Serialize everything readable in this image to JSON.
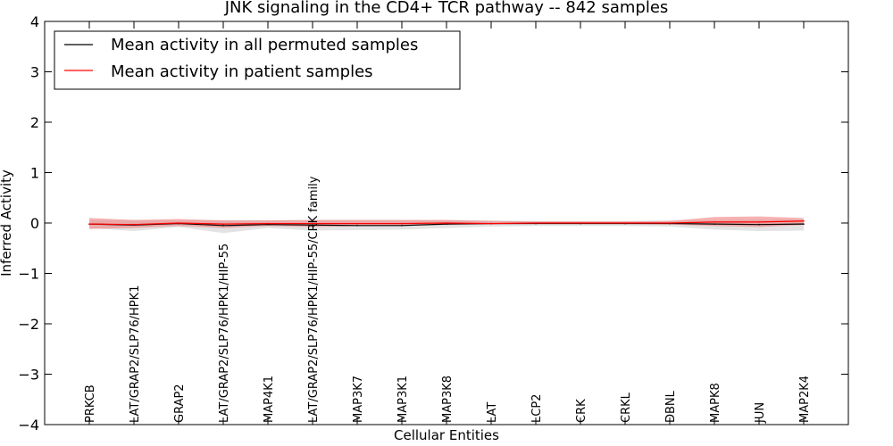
{
  "chart_data": {
    "type": "line",
    "title": "JNK signaling in the CD4+ TCR pathway -- 842 samples",
    "xlabel": "Cellular Entities",
    "ylabel": "Inferred Activity",
    "ylim": [
      -4,
      4
    ],
    "yticks": [
      -4,
      -3,
      -2,
      -1,
      0,
      1,
      2,
      3,
      4
    ],
    "ytick_labels": [
      "−4",
      "−3",
      "−2",
      "−1",
      "0",
      "1",
      "2",
      "3",
      "4"
    ],
    "grid": false,
    "legend_position": "top-left",
    "categories": [
      "PRKCB",
      "LAT/GRAP2/SLP76/HPK1",
      "GRAP2",
      "LAT/GRAP2/SLP76/HPK1/HIP-55",
      "MAP4K1",
      "LAT/GRAP2/SLP76/HPK1/HIP-55/CRK family",
      "MAP3K7",
      "MAP3K1",
      "MAP3K8",
      "LAT",
      "LCP2",
      "CRK",
      "CRKL",
      "DBNL",
      "MAPK8",
      "JUN",
      "MAP2K4"
    ],
    "series": [
      {
        "name": "Mean activity in all permuted samples",
        "color": "#000000",
        "band_color": "#c8c8c8",
        "values": [
          -0.02,
          -0.04,
          -0.01,
          -0.05,
          -0.03,
          -0.04,
          -0.05,
          -0.05,
          -0.02,
          -0.01,
          -0.01,
          -0.01,
          -0.01,
          -0.01,
          -0.02,
          -0.03,
          -0.02
        ],
        "band_low": [
          -0.1,
          -0.16,
          -0.08,
          -0.2,
          -0.1,
          -0.15,
          -0.14,
          -0.13,
          -0.1,
          -0.07,
          -0.06,
          -0.06,
          -0.06,
          -0.07,
          -0.13,
          -0.16,
          -0.15
        ],
        "band_high": [
          0.06,
          0.06,
          0.05,
          0.06,
          0.06,
          0.06,
          0.06,
          0.06,
          0.06,
          0.05,
          0.04,
          0.04,
          0.04,
          0.05,
          0.06,
          0.07,
          0.07
        ]
      },
      {
        "name": "Mean activity in patient samples",
        "color": "#ff0000",
        "band_color": "#f08080",
        "values": [
          -0.02,
          -0.03,
          0.0,
          -0.02,
          -0.01,
          -0.01,
          -0.01,
          -0.01,
          0.0,
          -0.01,
          0.0,
          0.0,
          0.0,
          0.0,
          0.02,
          0.02,
          0.04
        ],
        "band_low": [
          -0.12,
          -0.1,
          -0.06,
          -0.1,
          -0.06,
          -0.08,
          -0.06,
          -0.06,
          -0.04,
          -0.03,
          -0.02,
          -0.02,
          -0.02,
          -0.03,
          -0.06,
          -0.08,
          -0.04
        ],
        "band_high": [
          0.1,
          0.06,
          0.08,
          0.05,
          0.05,
          0.06,
          0.06,
          0.06,
          0.06,
          0.04,
          0.03,
          0.03,
          0.03,
          0.04,
          0.12,
          0.13,
          0.1
        ]
      }
    ]
  }
}
